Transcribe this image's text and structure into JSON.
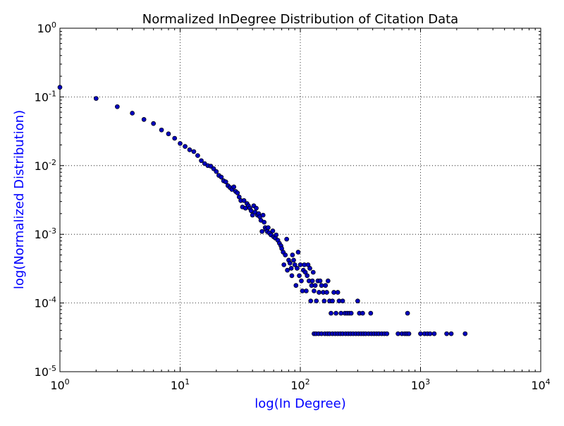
{
  "chart_data": {
    "type": "scatter",
    "title": "Normalized InDegree Distribution of Citation Data",
    "xlabel": "log(In Degree)",
    "ylabel": "log(Normalized Distribution)",
    "xscale": "log",
    "yscale": "log",
    "xlim": [
      1,
      10000
    ],
    "ylim": [
      1e-05,
      1
    ],
    "grid": true,
    "x_ticks": [
      {
        "base": "10",
        "exp": "0",
        "value": 1
      },
      {
        "base": "10",
        "exp": "1",
        "value": 10
      },
      {
        "base": "10",
        "exp": "2",
        "value": 100
      },
      {
        "base": "10",
        "exp": "3",
        "value": 1000
      },
      {
        "base": "10",
        "exp": "4",
        "value": 10000
      }
    ],
    "y_ticks": [
      {
        "base": "10",
        "exp": "-5",
        "value": 1e-05
      },
      {
        "base": "10",
        "exp": "-4",
        "value": 0.0001
      },
      {
        "base": "10",
        "exp": "-3",
        "value": 0.001
      },
      {
        "base": "10",
        "exp": "-2",
        "value": 0.01
      },
      {
        "base": "10",
        "exp": "-1",
        "value": 0.1
      },
      {
        "base": "10",
        "exp": "0",
        "value": 1
      }
    ],
    "colors": {
      "point_fill": "#0000bf",
      "point_stroke": "#000000",
      "axis_label": "#0000ff",
      "text": "#000000",
      "grid": "#000000"
    },
    "points": [
      [
        1,
        0.138
      ],
      [
        2,
        0.095
      ],
      [
        3,
        0.072
      ],
      [
        4,
        0.058
      ],
      [
        5,
        0.047
      ],
      [
        6,
        0.041
      ],
      [
        7,
        0.033
      ],
      [
        8,
        0.029
      ],
      [
        9,
        0.025
      ],
      [
        10,
        0.021
      ],
      [
        11,
        0.019
      ],
      [
        12,
        0.017
      ],
      [
        13,
        0.016
      ],
      [
        14,
        0.014
      ],
      [
        15,
        0.0118
      ],
      [
        16,
        0.0107
      ],
      [
        17,
        0.01
      ],
      [
        18,
        0.0098
      ],
      [
        19,
        0.009
      ],
      [
        20,
        0.0082
      ],
      [
        21,
        0.0072
      ],
      [
        22,
        0.0068
      ],
      [
        23,
        0.006
      ],
      [
        24,
        0.0058
      ],
      [
        25,
        0.0051
      ],
      [
        26,
        0.0048
      ],
      [
        27,
        0.0045
      ],
      [
        28,
        0.0049
      ],
      [
        29,
        0.0042
      ],
      [
        30,
        0.004
      ],
      [
        31,
        0.0035
      ],
      [
        32,
        0.0031
      ],
      [
        33,
        0.0025
      ],
      [
        34,
        0.0031
      ],
      [
        35,
        0.0024
      ],
      [
        36,
        0.0028
      ],
      [
        37,
        0.0026
      ],
      [
        38,
        0.0024
      ],
      [
        39,
        0.0022
      ],
      [
        40,
        0.0019
      ],
      [
        41,
        0.0026
      ],
      [
        42,
        0.0021
      ],
      [
        43,
        0.0024
      ],
      [
        44,
        0.0019
      ],
      [
        45,
        0.002
      ],
      [
        46,
        0.0018
      ],
      [
        47,
        0.0016
      ],
      [
        48,
        0.0011
      ],
      [
        49,
        0.0019
      ],
      [
        50,
        0.0015
      ],
      [
        51,
        0.00125
      ],
      [
        52,
        0.00118
      ],
      [
        53,
        0.0011
      ],
      [
        54,
        0.00125
      ],
      [
        55,
        0.00105
      ],
      [
        57,
        0.00098
      ],
      [
        59,
        0.00112
      ],
      [
        60,
        0.00092
      ],
      [
        62,
        0.00088
      ],
      [
        63,
        0.00098
      ],
      [
        65,
        0.00082
      ],
      [
        67,
        0.00074
      ],
      [
        69,
        0.00068
      ],
      [
        70,
        0.00062
      ],
      [
        72,
        0.00055
      ],
      [
        73,
        0.00036
      ],
      [
        75,
        0.0005
      ],
      [
        77,
        0.00085
      ],
      [
        78,
        0.0003
      ],
      [
        80,
        0.00042
      ],
      [
        82,
        0.00038
      ],
      [
        84,
        0.00032
      ],
      [
        85,
        0.00025
      ],
      [
        86,
        0.0005
      ],
      [
        88,
        0.00042
      ],
      [
        90,
        0.00036
      ],
      [
        92,
        0.00018
      ],
      [
        94,
        0.00032
      ],
      [
        96,
        0.00055
      ],
      [
        98,
        0.00025
      ],
      [
        100,
        0.00036
      ],
      [
        102,
        0.00021
      ],
      [
        104,
        0.00015
      ],
      [
        106,
        0.0003
      ],
      [
        108,
        0.00036
      ],
      [
        110,
        0.00028
      ],
      [
        112,
        0.00015
      ],
      [
        114,
        0.00025
      ],
      [
        116,
        0.00036
      ],
      [
        118,
        0.00021
      ],
      [
        120,
        0.00032
      ],
      [
        122,
        0.000107
      ],
      [
        124,
        0.00018
      ],
      [
        126,
        0.00021
      ],
      [
        128,
        0.00028
      ],
      [
        130,
        0.00015
      ],
      [
        133,
        0.00018
      ],
      [
        136,
        0.000107
      ],
      [
        140,
        0.00021
      ],
      [
        143,
        0.000143
      ],
      [
        146,
        0.00021
      ],
      [
        150,
        0.00018
      ],
      [
        155,
        0.000143
      ],
      [
        158,
        0.000107
      ],
      [
        162,
        0.00018
      ],
      [
        166,
        0.000143
      ],
      [
        170,
        0.00021
      ],
      [
        175,
        0.000107
      ],
      [
        180,
        7.1e-05
      ],
      [
        185,
        0.000107
      ],
      [
        190,
        0.000143
      ],
      [
        198,
        7.1e-05
      ],
      [
        205,
        0.000143
      ],
      [
        210,
        0.000107
      ],
      [
        218,
        7.1e-05
      ],
      [
        225,
        0.000107
      ],
      [
        235,
        7.1e-05
      ],
      [
        245,
        7.1e-05
      ],
      [
        255,
        7.1e-05
      ],
      [
        265,
        7.1e-05
      ],
      [
        300,
        0.000107
      ],
      [
        310,
        7.1e-05
      ],
      [
        330,
        7.1e-05
      ],
      [
        385,
        7.1e-05
      ],
      [
        130,
        3.57e-05
      ],
      [
        135,
        3.57e-05
      ],
      [
        142,
        3.57e-05
      ],
      [
        150,
        3.57e-05
      ],
      [
        160,
        3.57e-05
      ],
      [
        168,
        3.57e-05
      ],
      [
        175,
        3.57e-05
      ],
      [
        185,
        3.57e-05
      ],
      [
        195,
        3.57e-05
      ],
      [
        205,
        3.57e-05
      ],
      [
        215,
        3.57e-05
      ],
      [
        225,
        3.57e-05
      ],
      [
        238,
        3.57e-05
      ],
      [
        250,
        3.57e-05
      ],
      [
        262,
        3.57e-05
      ],
      [
        275,
        3.57e-05
      ],
      [
        290,
        3.57e-05
      ],
      [
        305,
        3.57e-05
      ],
      [
        320,
        3.57e-05
      ],
      [
        335,
        3.57e-05
      ],
      [
        350,
        3.57e-05
      ],
      [
        370,
        3.57e-05
      ],
      [
        390,
        3.57e-05
      ],
      [
        410,
        3.57e-05
      ],
      [
        430,
        3.57e-05
      ],
      [
        450,
        3.57e-05
      ],
      [
        475,
        3.57e-05
      ],
      [
        500,
        3.57e-05
      ],
      [
        525,
        3.57e-05
      ],
      [
        650,
        3.57e-05
      ],
      [
        700,
        3.57e-05
      ],
      [
        740,
        3.57e-05
      ],
      [
        770,
        3.57e-05
      ],
      [
        800,
        3.57e-05
      ],
      [
        780,
        7.1e-05
      ],
      [
        1000,
        3.57e-05
      ],
      [
        1080,
        3.57e-05
      ],
      [
        1140,
        3.57e-05
      ],
      [
        1200,
        3.57e-05
      ],
      [
        1300,
        3.57e-05
      ],
      [
        1650,
        3.57e-05
      ],
      [
        1800,
        3.57e-05
      ],
      [
        2350,
        3.57e-05
      ]
    ]
  }
}
